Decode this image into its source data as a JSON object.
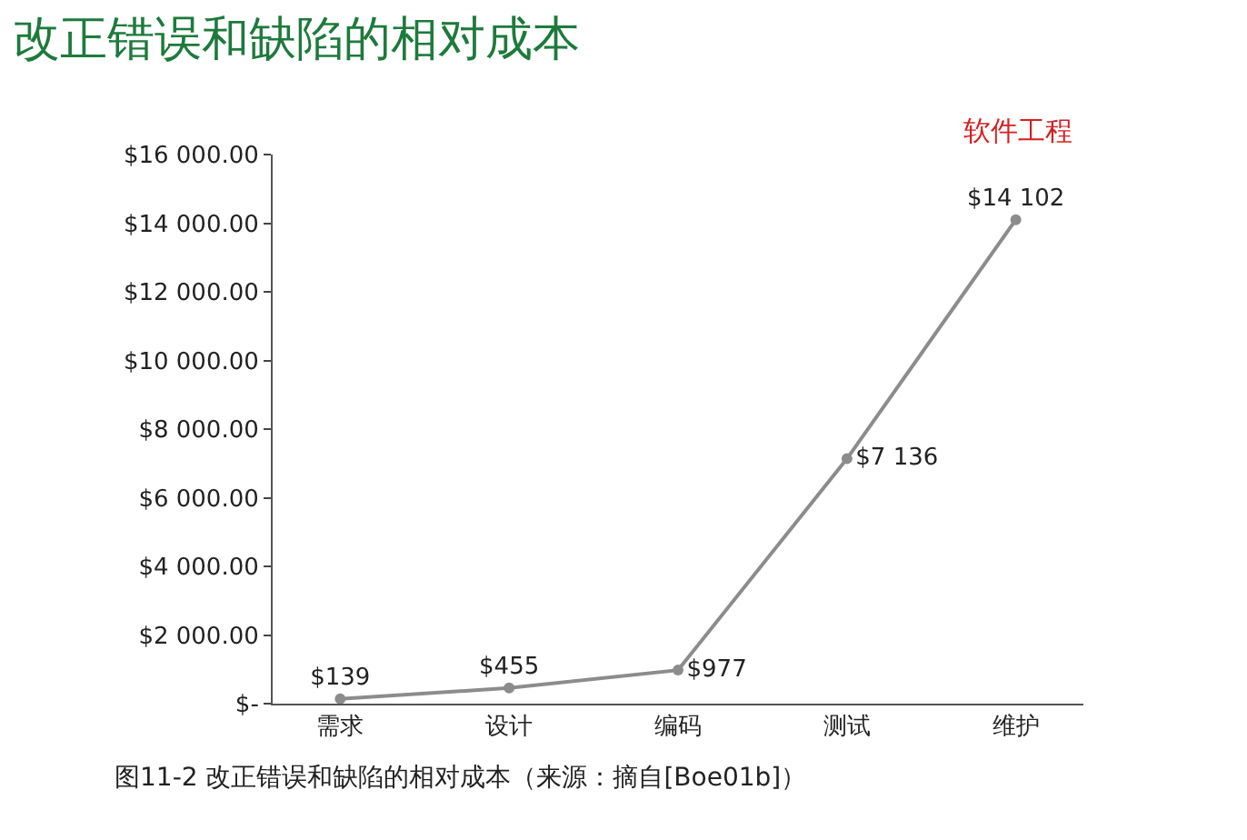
{
  "chart_data": {
    "type": "line",
    "title": "改正错误和缺陷的相对成本",
    "annotations": [
      "软件工程",
      "图11-2 改正错误和缺陷的相对成本（来源：摘自[Boe01b]）"
    ],
    "categories": [
      "需求",
      "设计",
      "编码",
      "测试",
      "维护"
    ],
    "series": [
      {
        "color": "#8c8c8c",
        "values": [
          139,
          455,
          977,
          7136,
          14102
        ],
        "value_labels": [
          "$139",
          "$455",
          "$977",
          "$7 136",
          "$14 102"
        ]
      }
    ],
    "ylim": [
      0,
      16000
    ],
    "yticks": [
      {
        "value": 0,
        "label": "$-"
      },
      {
        "value": 2000,
        "label": "$2 000.00"
      },
      {
        "value": 4000,
        "label": "$4 000.00"
      },
      {
        "value": 6000,
        "label": "$6 000.00"
      },
      {
        "value": 8000,
        "label": "$8 000.00"
      },
      {
        "value": 10000,
        "label": "$10 000.00"
      },
      {
        "value": 12000,
        "label": "$12 000.00"
      },
      {
        "value": 14000,
        "label": "$14 000.00"
      },
      {
        "value": 16000,
        "label": "$16 000.00"
      }
    ],
    "legend": false,
    "marker": "circle",
    "line_style": "solid"
  }
}
